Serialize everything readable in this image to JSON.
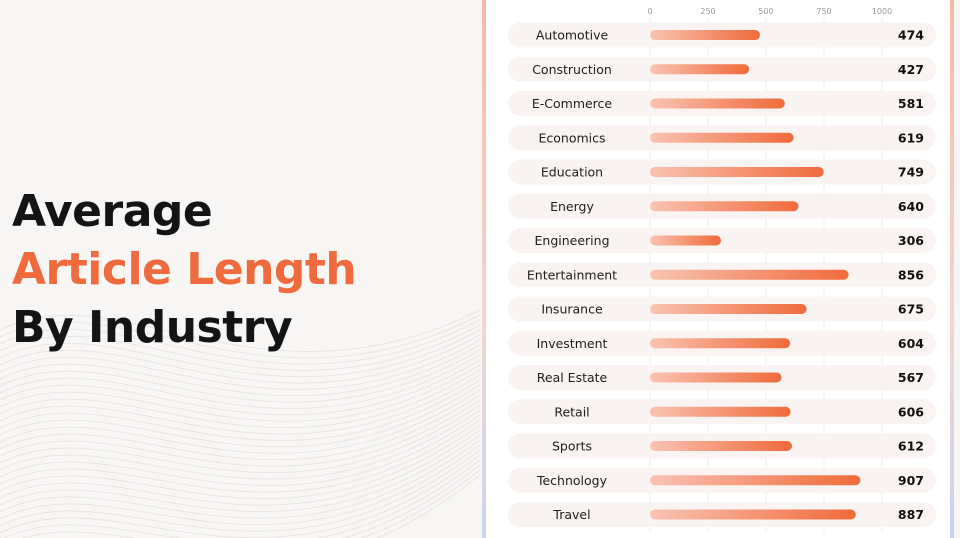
{
  "title": {
    "line1": "Average",
    "line2": "Article Length",
    "line3": "By Industry"
  },
  "colors": {
    "accent": "#ef6a3c",
    "bar_start": "#f9c3b2",
    "bar_end": "#f06a3a",
    "row_bg": "#f9f3f1",
    "text": "#1e1e1e"
  },
  "chart_data": {
    "type": "bar",
    "orientation": "horizontal",
    "xlim": [
      0,
      1000
    ],
    "x_ticks": [
      0,
      250,
      500,
      750,
      1000
    ],
    "x_tick_labels": [
      "0",
      "250",
      "500",
      "750",
      "1000"
    ],
    "grid": true,
    "categories": [
      "Automotive",
      "Construction",
      "E-Commerce",
      "Economics",
      "Education",
      "Energy",
      "Engineering",
      "Entertainment",
      "Insurance",
      "Investment",
      "Real Estate",
      "Retail",
      "Sports",
      "Technology",
      "Travel"
    ],
    "values": [
      474,
      427,
      581,
      619,
      749,
      640,
      306,
      856,
      675,
      604,
      567,
      606,
      612,
      907,
      887
    ],
    "value_labels": [
      "474",
      "427",
      "581",
      "619",
      "749",
      "640",
      "306",
      "856",
      "675",
      "604",
      "567",
      "606",
      "612",
      "907",
      "887"
    ]
  }
}
